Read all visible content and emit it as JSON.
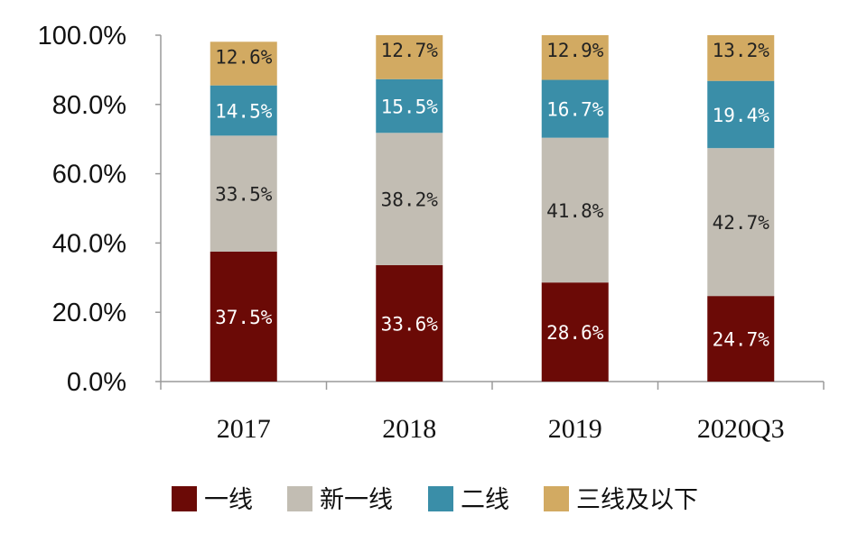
{
  "chart_data": {
    "type": "bar",
    "stacked": true,
    "categories": [
      "2017",
      "2018",
      "2019",
      "2020Q3"
    ],
    "series": [
      {
        "name": "一线",
        "color": "#6b0a06",
        "label_color": "#ffffff",
        "values": [
          37.5,
          33.6,
          28.6,
          24.7
        ],
        "labels": [
          "37.5%",
          "33.6%",
          "28.6%",
          "24.7%"
        ]
      },
      {
        "name": "新一线",
        "color": "#c2bdb3",
        "label_color": "#222222",
        "values": [
          33.5,
          38.2,
          41.8,
          42.7
        ],
        "labels": [
          "33.5%",
          "38.2%",
          "41.8%",
          "42.7%"
        ]
      },
      {
        "name": "二线",
        "color": "#3a8ea8",
        "label_color": "#ffffff",
        "values": [
          14.5,
          15.5,
          16.7,
          19.4
        ],
        "labels": [
          "14.5%",
          "15.5%",
          "16.7%",
          "19.4%"
        ]
      },
      {
        "name": "三线及以下",
        "color": "#d2aa62",
        "label_color": "#222222",
        "values": [
          12.6,
          12.7,
          12.9,
          13.2
        ],
        "labels": [
          "12.6%",
          "12.7%",
          "12.9%",
          "13.2%"
        ]
      }
    ],
    "ylim": [
      0,
      100
    ],
    "yticks": [
      0,
      20,
      40,
      60,
      80,
      100
    ],
    "ytick_labels": [
      "0.0%",
      "20.0%",
      "40.0%",
      "60.0%",
      "80.0%",
      "100.0%"
    ],
    "title": "",
    "xlabel": "",
    "ylabel": "",
    "grid": false,
    "legend_position": "bottom"
  }
}
